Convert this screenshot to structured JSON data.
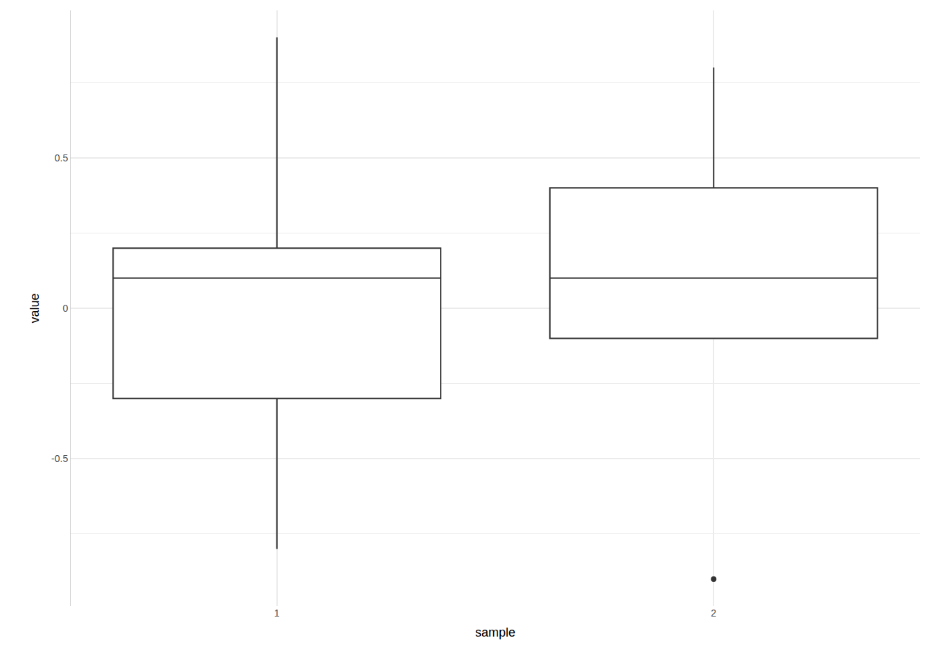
{
  "chart_data": {
    "type": "box",
    "x_label": "sample",
    "y_label": "value",
    "categories": [
      "1",
      "2"
    ],
    "boxes": [
      {
        "lower_whisker": -0.8,
        "q1": -0.3,
        "median": 0.1,
        "q3": 0.2,
        "upper_whisker": 0.9,
        "outliers": []
      },
      {
        "lower_whisker": -0.1,
        "q1": -0.1,
        "median": 0.1,
        "q3": 0.4,
        "upper_whisker": 0.8,
        "outliers": [
          -0.9
        ]
      }
    ],
    "color": "#333333",
    "ylim": [
      -0.99,
      0.99
    ],
    "yticks": [
      -0.5,
      0,
      0.5
    ],
    "grid": true
  }
}
